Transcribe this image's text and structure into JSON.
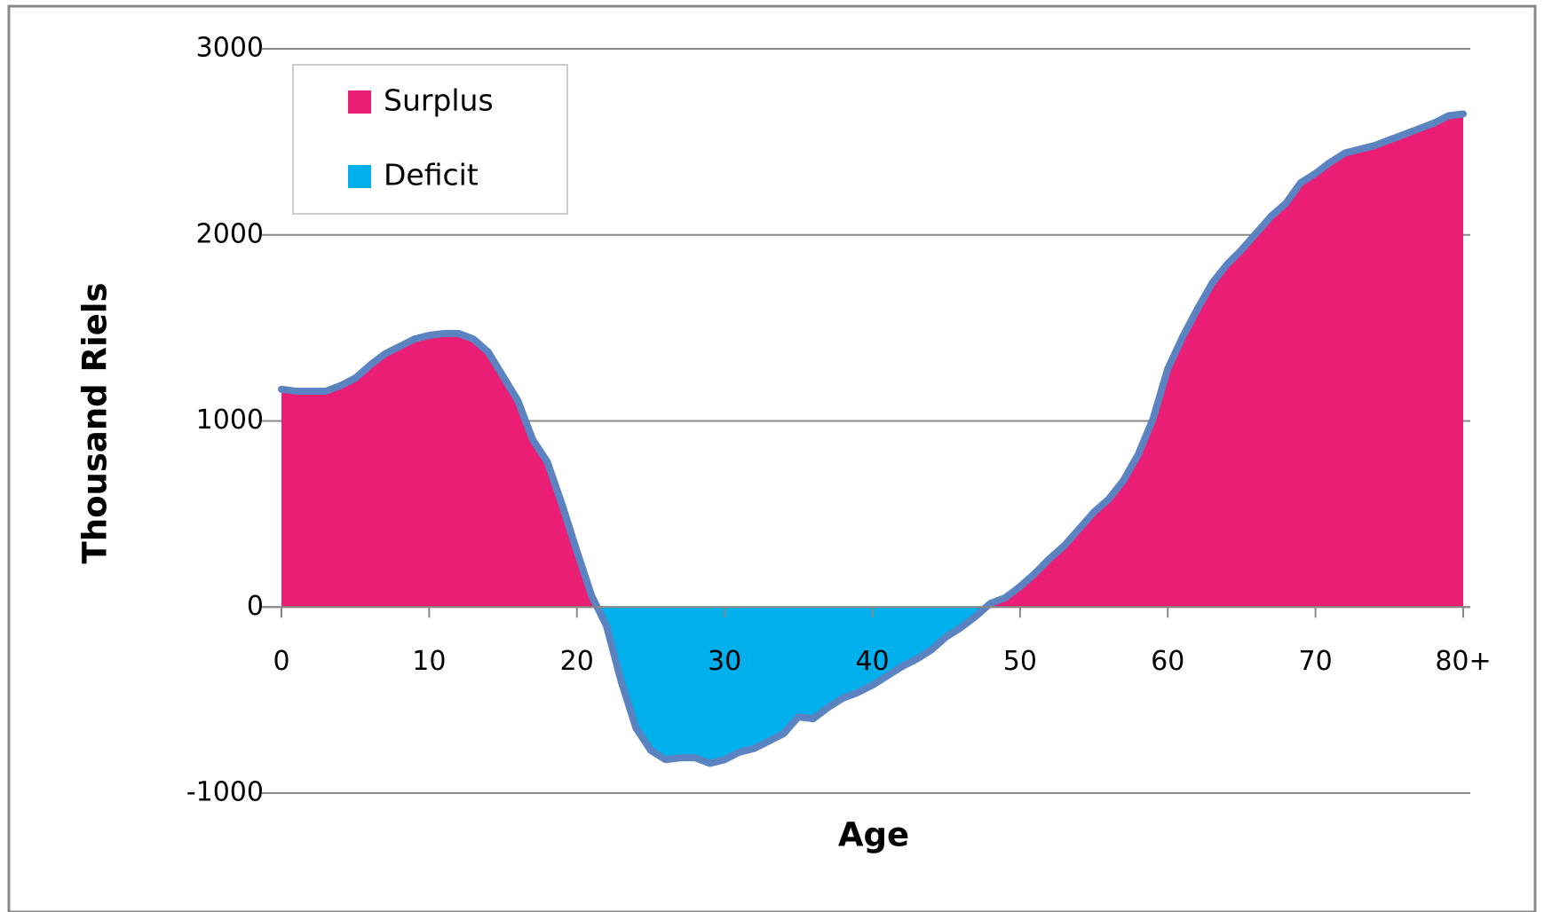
{
  "chart_data": {
    "type": "area",
    "x_label": "Age",
    "y_label": "Thousand Riels",
    "x": [
      0,
      1,
      2,
      3,
      4,
      5,
      6,
      7,
      8,
      9,
      10,
      11,
      12,
      13,
      14,
      15,
      16,
      17,
      18,
      19,
      20,
      21,
      22,
      23,
      24,
      25,
      26,
      27,
      28,
      29,
      30,
      31,
      32,
      33,
      34,
      35,
      36,
      37,
      38,
      39,
      40,
      41,
      42,
      43,
      44,
      45,
      46,
      47,
      48,
      49,
      50,
      51,
      52,
      53,
      54,
      55,
      56,
      57,
      58,
      59,
      60,
      61,
      62,
      63,
      64,
      65,
      66,
      67,
      68,
      69,
      70,
      71,
      72,
      73,
      74,
      75,
      76,
      77,
      78,
      79,
      80
    ],
    "values": [
      1170,
      1160,
      1160,
      1160,
      1190,
      1230,
      1300,
      1360,
      1400,
      1440,
      1460,
      1470,
      1470,
      1440,
      1370,
      1240,
      1110,
      900,
      780,
      550,
      300,
      60,
      -100,
      -400,
      -650,
      -770,
      -820,
      -810,
      -810,
      -840,
      -820,
      -780,
      -760,
      -720,
      -680,
      -590,
      -600,
      -540,
      -490,
      -460,
      -420,
      -370,
      -320,
      -280,
      -230,
      -160,
      -110,
      -50,
      20,
      50,
      110,
      180,
      260,
      330,
      420,
      510,
      580,
      680,
      820,
      1010,
      1280,
      1450,
      1600,
      1740,
      1840,
      1920,
      2010,
      2100,
      2170,
      2280,
      2330,
      2390,
      2440,
      2460,
      2480,
      2510,
      2540,
      2570,
      2600,
      2640,
      2650
    ],
    "line_color": "#5b83c2",
    "legend": [
      {
        "name": "Surplus",
        "color": "#e91e74"
      },
      {
        "name": "Deficit",
        "color": "#00b0ec"
      }
    ],
    "legend_position": "upper left",
    "xlim": [
      0,
      80
    ],
    "xticks": [
      0,
      10,
      20,
      30,
      40,
      50,
      60,
      70,
      {
        "value": 80,
        "label": "80+"
      }
    ],
    "ylim": [
      -1000,
      3000
    ],
    "yticks": [
      -1000,
      0,
      1000,
      2000,
      3000
    ],
    "grid": true
  }
}
